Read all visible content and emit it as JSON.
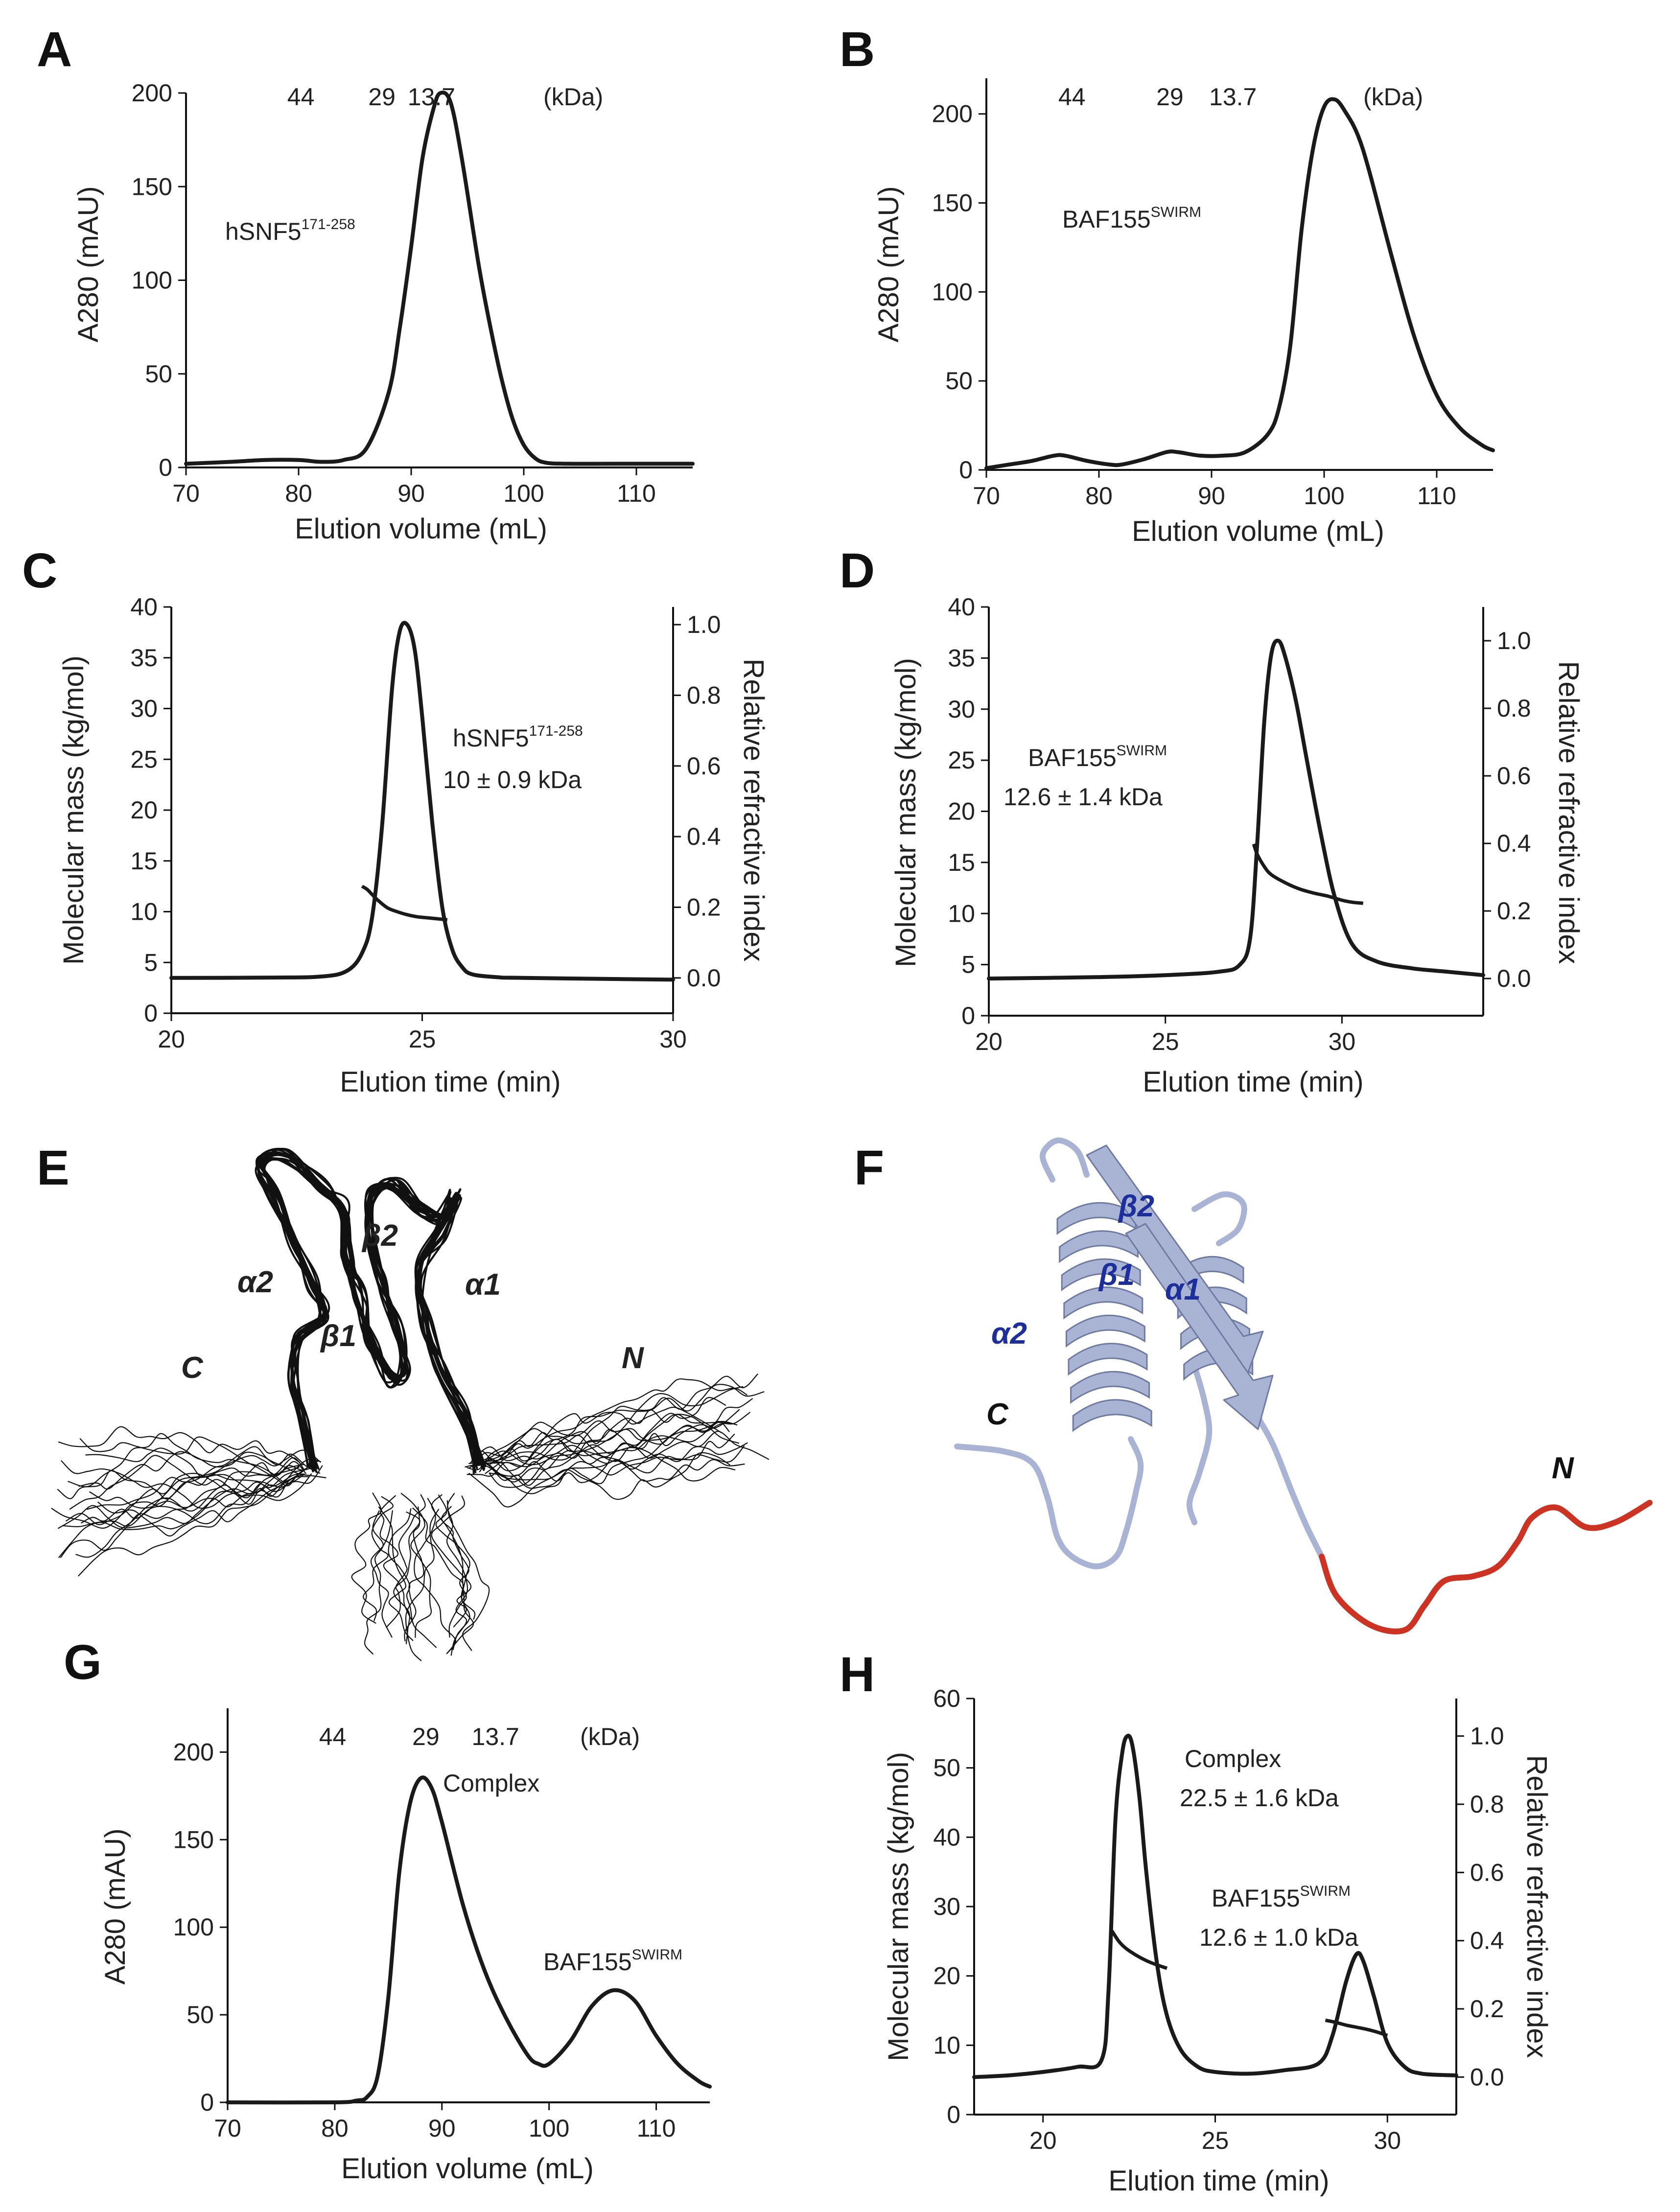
{
  "panels": {
    "A": {
      "label": "A",
      "annotation": {
        "text": "hSNF5",
        "sup": "171-258"
      },
      "chart_data": {
        "type": "line",
        "xlabel": "Elution volume (mL)",
        "ylabel": "A280 (mAU)",
        "xlim": [
          70,
          115
        ],
        "ylim": [
          0,
          200
        ],
        "xticks": [
          70,
          80,
          90,
          100,
          110
        ],
        "yticks": [
          0,
          50,
          100,
          150,
          200
        ],
        "markers": {
          "values": [
            80.2,
            87.4,
            91.8
          ],
          "labels": [
            "44",
            "29",
            "13.7"
          ],
          "unit": "(kDa)"
        },
        "series": [
          {
            "name": "hSNF5 171-258",
            "x": [
              70,
              74,
              77,
              80,
              82,
              84,
              86,
              88,
              89,
              90,
              91,
              92,
              92.6,
              93.5,
              94.5,
              96,
              97,
              98,
              99,
              100,
              101,
              102,
              104,
              108,
              115
            ],
            "y": [
              2,
              3,
              4,
              4,
              3,
              4,
              10,
              40,
              75,
              118,
              165,
              192,
              200,
              195,
              165,
              108,
              76,
              48,
              26,
              12,
              5,
              2.5,
              2,
              2,
              2
            ]
          }
        ]
      }
    },
    "B": {
      "label": "B",
      "annotation": {
        "text": "BAF155",
        "sup": "SWIRM"
      },
      "chart_data": {
        "type": "line",
        "xlabel": "Elution volume (mL)",
        "ylabel": "A280 (mAU)",
        "xlim": [
          70,
          115
        ],
        "ylim": [
          0,
          220
        ],
        "xticks": [
          70,
          80,
          90,
          100,
          110
        ],
        "yticks": [
          0,
          50,
          100,
          150,
          200
        ],
        "markers": {
          "values": [
            77.6,
            86.3,
            91.9
          ],
          "labels": [
            "44",
            "29",
            "13.7"
          ],
          "unit": "(kDa)"
        },
        "series": [
          {
            "name": "BAF155 SWIRM",
            "x": [
              70,
              72,
              74,
              76,
              77,
              79,
              81,
              82,
              84,
              86,
              87,
              89,
              91,
              93,
              95,
              96,
              97,
              98,
              99,
              100,
              101,
              102,
              103,
              104,
              106,
              108,
              110,
              112,
              114,
              115
            ],
            "y": [
              1,
              3,
              5,
              8,
              8,
              5,
              3,
              3,
              6,
              10,
              10,
              8,
              8,
              10,
              20,
              35,
              70,
              135,
              180,
              204,
              208,
              200,
              188,
              168,
              120,
              75,
              42,
              24,
              14,
              11
            ]
          }
        ]
      }
    },
    "C": {
      "label": "C",
      "annotation": {
        "line1": "hSNF5",
        "sup": "171-258",
        "line2": "10 ± 0.9 kDa"
      },
      "chart_data": {
        "type": "line",
        "xlabel": "Elution time (min)",
        "ylabel": "Molecular mass (kg/mol)",
        "y2label": "Relative refractive index",
        "xlim": [
          20,
          30
        ],
        "ylim": [
          0,
          40
        ],
        "y2lim": [
          -0.1,
          1.05
        ],
        "xticks": [
          20,
          25,
          30
        ],
        "yticks": [
          0,
          5,
          10,
          15,
          20,
          25,
          30,
          35,
          40
        ],
        "y2ticks": [
          0.0,
          0.2,
          0.4,
          0.6,
          0.8,
          1.0
        ],
        "y2ticklabels": [
          "0.0",
          "0.2",
          "0.4",
          "0.6",
          "0.8",
          "1.0"
        ],
        "series": [
          {
            "name": "Relative refractive index",
            "axis": "y2",
            "x": [
              20,
              22,
              23,
              23.5,
              23.8,
              24,
              24.2,
              24.4,
              24.55,
              24.7,
              24.85,
              25,
              25.2,
              25.4,
              25.6,
              25.8,
              26,
              26.5,
              27,
              30
            ],
            "y": [
              0,
              0.001,
              0.004,
              0.02,
              0.07,
              0.17,
              0.43,
              0.82,
              0.98,
              1.0,
              0.93,
              0.74,
              0.44,
              0.2,
              0.08,
              0.03,
              0.01,
              0.002,
              0,
              -0.005
            ]
          },
          {
            "name": "Molecular mass",
            "axis": "y",
            "x": [
              23.8,
              23.9,
              24.0,
              24.1,
              24.3,
              24.5,
              24.7,
              24.9,
              25.1,
              25.3,
              25.5
            ],
            "y": [
              12.5,
              12.2,
              11.7,
              11.2,
              10.4,
              10.0,
              9.7,
              9.5,
              9.4,
              9.3,
              9.2
            ]
          }
        ]
      }
    },
    "D": {
      "label": "D",
      "annotation": {
        "line1": "BAF155",
        "sup": "SWIRM",
        "line2": "12.6 ± 1.4 kDa"
      },
      "chart_data": {
        "type": "line",
        "xlabel": "Elution time (min)",
        "ylabel": "Molecular mass (kg/mol)",
        "y2label": "Relative refractive index",
        "xlim": [
          20,
          34
        ],
        "ylim": [
          0,
          40
        ],
        "y2lim": [
          -0.11,
          1.1
        ],
        "xticks": [
          20,
          25,
          30
        ],
        "yticks": [
          0,
          5,
          10,
          15,
          20,
          25,
          30,
          35,
          40
        ],
        "y2ticks": [
          0.0,
          0.2,
          0.4,
          0.6,
          0.8,
          1.0
        ],
        "y2ticklabels": [
          "0.0",
          "0.2",
          "0.4",
          "0.6",
          "0.8",
          "1.0"
        ],
        "series": [
          {
            "name": "Relative refractive index",
            "axis": "y2",
            "x": [
              20,
              23,
              25,
              26.5,
              27.1,
              27.4,
              27.6,
              27.8,
              28.0,
              28.2,
              28.4,
              28.7,
              29,
              29.4,
              29.8,
              30.3,
              31,
              32,
              33,
              34
            ],
            "y": [
              0,
              0.004,
              0.01,
              0.02,
              0.04,
              0.12,
              0.4,
              0.76,
              0.96,
              1.0,
              0.95,
              0.82,
              0.65,
              0.43,
              0.24,
              0.1,
              0.05,
              0.03,
              0.02,
              0.01
            ]
          },
          {
            "name": "Molecular mass",
            "axis": "y",
            "x": [
              27.5,
              27.6,
              27.8,
              28.0,
              28.4,
              28.8,
              29.2,
              29.6,
              30.0,
              30.3,
              30.6
            ],
            "y": [
              16.8,
              15.8,
              14.6,
              13.8,
              13.0,
              12.4,
              12.0,
              11.7,
              11.3,
              11.1,
              11.0
            ]
          }
        ]
      }
    },
    "E": {
      "label": "E",
      "labels": {
        "a2": "α2",
        "b2": "β2",
        "a1": "α1",
        "b1": "β1",
        "c": "C",
        "n": "N"
      }
    },
    "F": {
      "label": "F",
      "labels": {
        "b2": "β2",
        "b1": "β1",
        "a1": "α1",
        "a2": "α2",
        "c": "C",
        "n": "N"
      },
      "colors": {
        "ribbon": "#a9b3d3",
        "ribbon_dark": "#6f7aa3",
        "tail": "#cc3322",
        "label_blue": "#1c2f9a"
      }
    },
    "G": {
      "label": "G",
      "annotations": {
        "complex": "Complex",
        "baf": "BAF155",
        "baf_sup": "SWIRM"
      },
      "chart_data": {
        "type": "line",
        "xlabel": "Elution volume (mL)",
        "ylabel": "A280 (mAU)",
        "xlim": [
          70,
          115
        ],
        "ylim": [
          0,
          225
        ],
        "xticks": [
          70,
          80,
          90,
          100,
          110
        ],
        "yticks": [
          0,
          50,
          100,
          150,
          200
        ],
        "markers": {
          "values": [
            79.8,
            88.5,
            95.0
          ],
          "labels": [
            "44",
            "29",
            "13.7"
          ],
          "unit": "(kDa)"
        },
        "series": [
          {
            "name": "Complex + BAF155 SWIRM",
            "x": [
              70,
              80,
              82,
              83,
              84,
              85,
              86,
              87,
              88,
              89,
              90,
              92,
              94,
              96,
              98,
              99,
              100,
              102,
              104,
              106,
              108,
              110,
              112,
              114,
              115
            ],
            "y": [
              0,
              0,
              1,
              3,
              15,
              60,
              130,
              170,
              185,
              180,
              160,
              112,
              75,
              48,
              27,
              22,
              22,
              35,
              55,
              64,
              58,
              38,
              22,
              12,
              9
            ]
          }
        ]
      }
    },
    "H": {
      "label": "H",
      "annotations": {
        "complex": "Complex",
        "complex_mass": "22.5 ± 1.6 kDa",
        "baf": "BAF155",
        "baf_sup": "SWIRM",
        "baf_mass": "12.6 ± 1.0 kDa"
      },
      "chart_data": {
        "type": "line",
        "xlabel": "Elution time (min)",
        "ylabel": "Molecular mass (kg/mol)",
        "y2label": "Relative refractive index",
        "xlim": [
          18,
          32
        ],
        "ylim": [
          0,
          60
        ],
        "y2lim": [
          -0.11,
          1.11
        ],
        "xticks": [
          20,
          25,
          30
        ],
        "yticks": [
          0,
          10,
          20,
          30,
          40,
          50,
          60
        ],
        "y2ticks": [
          0.0,
          0.2,
          0.4,
          0.6,
          0.8,
          1.0
        ],
        "y2ticklabels": [
          "0.0",
          "0.2",
          "0.4",
          "0.6",
          "0.8",
          "1.0"
        ],
        "series": [
          {
            "name": "Relative refractive index",
            "axis": "y2",
            "x": [
              18,
              19,
              20,
              21,
              21.7,
              21.9,
              22.1,
              22.3,
              22.45,
              22.6,
              22.8,
              23,
              23.3,
              23.6,
              24,
              24.5,
              25,
              26,
              27,
              28,
              28.4,
              28.8,
              29.1,
              29.3,
              29.6,
              30,
              30.5,
              31,
              32
            ],
            "y": [
              0,
              0.005,
              0.015,
              0.03,
              0.05,
              0.25,
              0.75,
              0.95,
              1.0,
              0.97,
              0.82,
              0.6,
              0.34,
              0.18,
              0.08,
              0.03,
              0.015,
              0.01,
              0.02,
              0.04,
              0.12,
              0.28,
              0.36,
              0.34,
              0.24,
              0.1,
              0.03,
              0.01,
              0.005
            ]
          },
          {
            "name": "Complex molar mass",
            "axis": "y",
            "x": [
              22.0,
              22.2,
              22.4,
              22.7,
              23.0,
              23.3,
              23.6
            ],
            "y": [
              26.5,
              25,
              24,
              23,
              22.2,
              21.6,
              21.1
            ]
          },
          {
            "name": "BAF155 molar mass",
            "axis": "y",
            "x": [
              28.2,
              28.5,
              28.8,
              29.1,
              29.4,
              29.7,
              30.0
            ],
            "y": [
              13.6,
              13.3,
              12.9,
              12.6,
              12.3,
              11.9,
              11.4
            ]
          }
        ]
      }
    }
  }
}
